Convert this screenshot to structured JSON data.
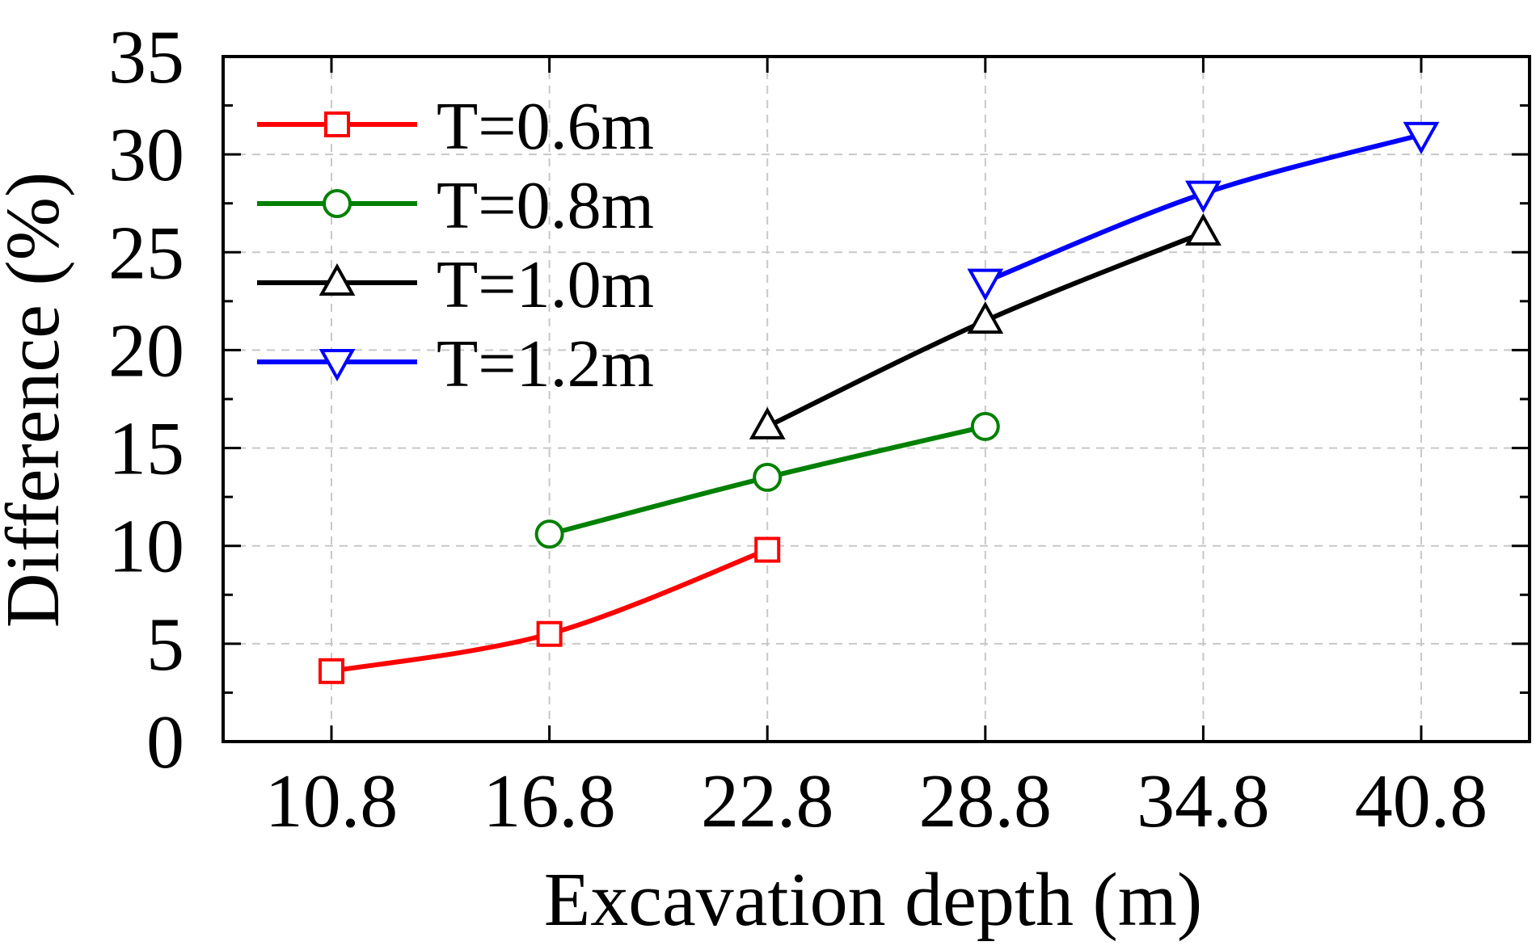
{
  "chart_data": {
    "type": "line",
    "title": "",
    "xlabel": "Excavation depth (m)",
    "ylabel": "Difference (%)",
    "categories": [
      "10.8",
      "16.8",
      "22.8",
      "28.8",
      "34.8",
      "40.8"
    ],
    "ylim": [
      0,
      35
    ],
    "yticks": [
      "0",
      "5",
      "10",
      "15",
      "20",
      "25",
      "30",
      "35"
    ],
    "grid": true,
    "legend_position": "top-left",
    "series": [
      {
        "name": "T=0.6m",
        "color": "#ff0000",
        "marker": "square",
        "values": [
          3.6,
          5.5,
          9.8,
          null,
          null,
          null
        ]
      },
      {
        "name": "T=0.8m",
        "color": "#008000",
        "marker": "circle",
        "values": [
          null,
          10.6,
          13.5,
          16.1,
          null,
          null
        ]
      },
      {
        "name": "T=1.0m",
        "color": "#000000",
        "marker": "triangle-up",
        "values": [
          null,
          null,
          16.1,
          21.5,
          26.0,
          null
        ]
      },
      {
        "name": "T=1.2m",
        "color": "#0000ff",
        "marker": "triangle-down",
        "values": [
          null,
          null,
          null,
          23.5,
          28.0,
          31.0
        ]
      }
    ]
  }
}
